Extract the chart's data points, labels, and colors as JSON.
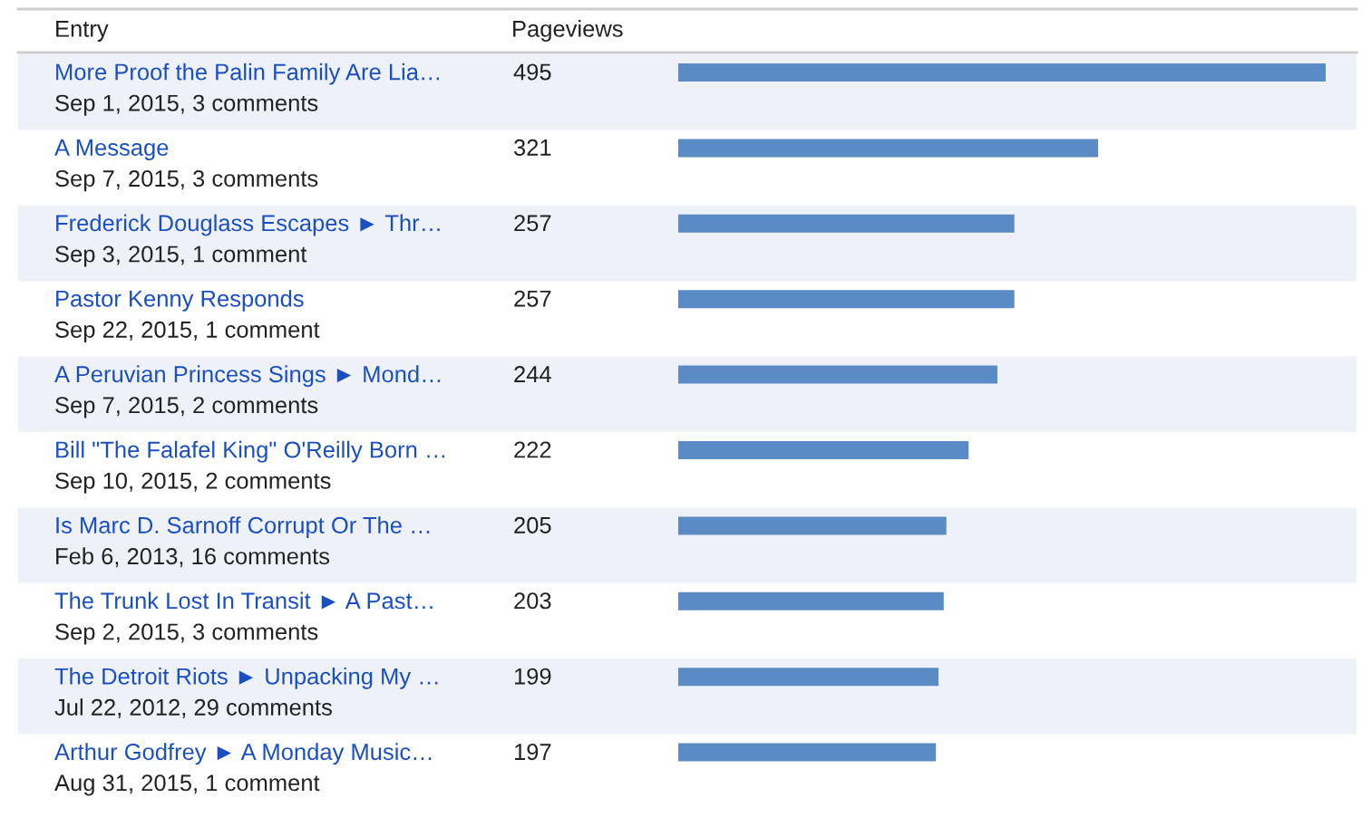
{
  "chart_data": {
    "type": "bar",
    "orientation": "horizontal",
    "annotations": [
      "Entry",
      "Pageviews"
    ],
    "categories": [
      "More Proof the Palin Family Are Lia…\nSep 1, 2015, 3 comments",
      "A Message\nSep 7, 2015, 3 comments",
      "Frederick Douglass Escapes ► Thr…\nSep 3, 2015, 1 comment",
      "Pastor Kenny Responds\nSep 22, 2015, 1 comment",
      "A Peruvian Princess Sings ► Mond…\nSep 7, 2015, 2 comments",
      "Bill \"The Falafel King\" O'Reilly Born …\nSep 10, 2015, 2 comments",
      "Is Marc D. Sarnoff Corrupt Or The …\nFeb 6, 2013, 16 comments",
      "The Trunk Lost In Transit ► A Past…\nSep 2, 2015, 3 comments",
      "The Detroit Riots ► Unpacking My …\nJul 22, 2012, 29 comments",
      "Arthur Godfrey ► A Monday Music…\nAug 31, 2015, 1 comment"
    ],
    "values": [
      495,
      321,
      257,
      257,
      244,
      222,
      205,
      203,
      199,
      197
    ],
    "color": "#5b8bc5",
    "data_labels": true
  }
}
